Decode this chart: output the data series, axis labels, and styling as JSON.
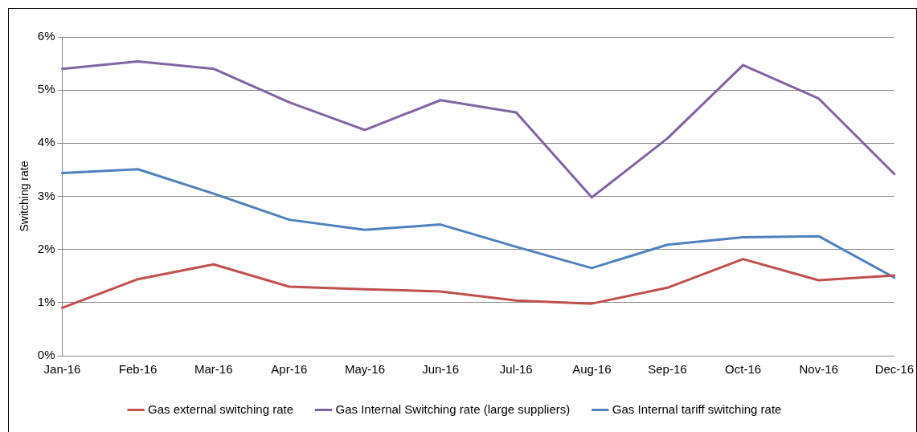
{
  "chart_data": {
    "type": "line",
    "ylabel": "Switching rate",
    "categories": [
      "Jan-16",
      "Feb-16",
      "Mar-16",
      "Apr-16",
      "May-16",
      "Jun-16",
      "Jul-16",
      "Aug-16",
      "Sep-16",
      "Oct-16",
      "Nov-16",
      "Dec-16"
    ],
    "series": [
      {
        "name": "Gas external switching rate",
        "color": "#c0504d",
        "values": [
          0.9,
          1.44,
          1.72,
          1.3,
          1.25,
          1.21,
          1.04,
          0.98,
          1.28,
          1.82,
          1.42,
          1.51
        ]
      },
      {
        "name": "Gas Internal Switching rate (large suppliers)",
        "color": "#8064a2",
        "values": [
          5.4,
          5.54,
          5.4,
          4.77,
          4.25,
          4.81,
          4.58,
          2.98,
          4.09,
          5.47,
          4.84,
          3.42
        ]
      },
      {
        "name": "Gas Internal tariff switching rate",
        "color": "#4f81bd",
        "values": [
          3.44,
          3.51,
          3.05,
          2.56,
          2.37,
          2.47,
          2.05,
          1.65,
          2.09,
          2.23,
          2.25,
          1.47
        ]
      }
    ],
    "ylim": [
      0,
      6
    ],
    "yticks": [
      {
        "value": 0,
        "label": "0%"
      },
      {
        "value": 1,
        "label": "1%"
      },
      {
        "value": 2,
        "label": "2%"
      },
      {
        "value": 3,
        "label": "3%"
      },
      {
        "value": 4,
        "label": "4%"
      },
      {
        "value": 5,
        "label": "5%"
      },
      {
        "value": 6,
        "label": "6%"
      }
    ],
    "grid": "y",
    "legend": "bottom",
    "marker": "none",
    "line_style": "solid"
  }
}
